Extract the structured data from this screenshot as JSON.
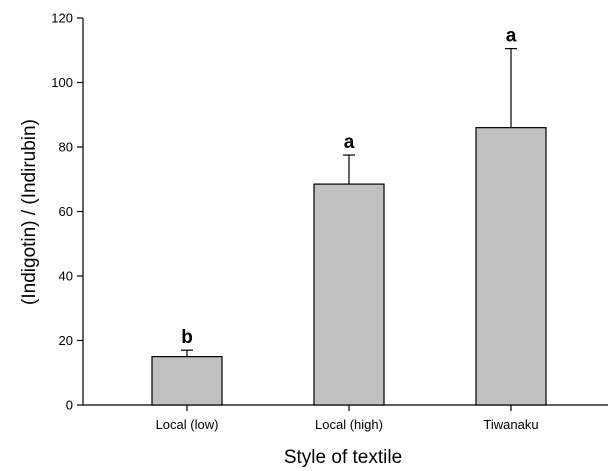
{
  "chart_data": {
    "type": "bar",
    "xlabel": "Style of textile",
    "ylabel": "(Indigotin) / (Indirubin)",
    "categories": [
      "Local (low)",
      "Local (high)",
      "Tiwanaku"
    ],
    "values": [
      15,
      68.5,
      86
    ],
    "error_upper": [
      17,
      77.5,
      110.5
    ],
    "significance_labels": [
      "b",
      "a",
      "a"
    ],
    "ylim": [
      0,
      120
    ],
    "yticks": [
      0,
      20,
      40,
      60,
      80,
      100,
      120
    ],
    "grid": false,
    "legend": "none",
    "bar_color": "#c0c0c0",
    "edge_color": "#000000"
  }
}
